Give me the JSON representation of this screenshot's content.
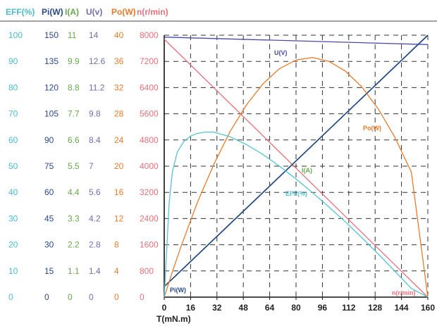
{
  "chart_data": {
    "type": "line",
    "xlabel": "T(mN.m)",
    "xlim": [
      0,
      160
    ],
    "x_ticks": [
      0,
      16,
      32,
      48,
      64,
      80,
      96,
      112,
      128,
      144,
      160
    ],
    "axes": [
      {
        "header": "EFF(%)",
        "color": "#4cbccc",
        "ticks": [
          "0",
          "10",
          "20",
          "30",
          "40",
          "50",
          "60",
          "70",
          "80",
          "90",
          "100"
        ],
        "range": [
          0,
          100
        ]
      },
      {
        "header": "Pi(W)",
        "color": "#2b4a8c",
        "ticks": [
          "0",
          "15",
          "30",
          "45",
          "60",
          "75",
          "90",
          "105",
          "120",
          "135",
          "150"
        ],
        "range": [
          0,
          150
        ]
      },
      {
        "header": "I(A)",
        "color": "#6aa84f",
        "ticks": [
          "0",
          "1.1",
          "2.2",
          "3.3",
          "4.4",
          "5.5",
          "6.6",
          "7.7",
          "8.8",
          "9.9",
          "11"
        ],
        "range": [
          0,
          11
        ]
      },
      {
        "header": "U(v)",
        "color": "#6f6fb0",
        "ticks": [
          "0",
          "1.4",
          "2.8",
          "4.2",
          "5.6",
          "7",
          "8.4",
          "9.8",
          "11.2",
          "12.6",
          "14"
        ],
        "range": [
          0,
          14
        ]
      },
      {
        "header": "Po(W)",
        "color": "#e87b2b",
        "ticks": [
          "0",
          "4",
          "8",
          "12",
          "16",
          "20",
          "24",
          "28",
          "32",
          "36",
          "40"
        ],
        "range": [
          0,
          40
        ]
      },
      {
        "header": "n(r/min)",
        "color": "#e8707a",
        "ticks": [
          "0",
          "800",
          "1600",
          "2400",
          "3200",
          "4000",
          "4800",
          "5600",
          "6400",
          "7200",
          "8000"
        ],
        "range": [
          0,
          8000
        ]
      }
    ],
    "series": [
      {
        "name": "U(V)",
        "axis": 3,
        "color": "#4a4aa8",
        "x": [
          0,
          160
        ],
        "y": [
          13.9,
          13.5
        ]
      },
      {
        "name": "n(r/min)",
        "axis": 5,
        "color": "#e8707a",
        "x": [
          0,
          160
        ],
        "y": [
          7880,
          0
        ]
      },
      {
        "name": "I(A)",
        "axis": 2,
        "color": "#2e6e76",
        "x": [
          0,
          160
        ],
        "y": [
          0.44,
          11
        ]
      },
      {
        "name": "Pi(W)",
        "axis": 1,
        "color": "#274a86",
        "x": [
          0,
          160
        ],
        "y": [
          6,
          150
        ]
      },
      {
        "name": "Po(W)",
        "axis": 4,
        "color": "#e87b2b",
        "x": [
          0,
          5,
          10,
          20,
          30,
          40,
          50,
          60,
          70,
          80,
          90,
          100,
          110,
          120,
          130,
          140,
          150,
          160
        ],
        "y": [
          0,
          3.9,
          7.6,
          14.4,
          20.2,
          25.3,
          29.4,
          32.6,
          34.9,
          36.2,
          36.6,
          36,
          34.5,
          32.1,
          28.7,
          24.4,
          19.1,
          0
        ]
      },
      {
        "name": "EFF(%)",
        "axis": 0,
        "color": "#56c3d1",
        "x": [
          0,
          1.5,
          3,
          5,
          8,
          12,
          16,
          20,
          25,
          30,
          40,
          50,
          60,
          70,
          80,
          90,
          100,
          110,
          120,
          130,
          140,
          150,
          160
        ],
        "y": [
          0,
          18,
          36,
          48,
          55.5,
          59.5,
          61.5,
          62.5,
          63,
          63,
          61.2,
          58.2,
          54.4,
          50,
          45.1,
          39.9,
          34.4,
          28.7,
          22.7,
          16.4,
          9.9,
          3.3,
          0
        ]
      }
    ],
    "labels": [
      {
        "text": "U(V)",
        "color": "#4a4aa8"
      },
      {
        "text": "Po(W)",
        "color": "#e87b2b"
      },
      {
        "text": "I(A)",
        "color": "#6aa84f"
      },
      {
        "text": "EFF(%)",
        "color": "#56c3d1"
      },
      {
        "text": "Pi(W)",
        "color": "#274a86"
      },
      {
        "text": "n(r/min)",
        "color": "#e8707a"
      }
    ],
    "grid": true
  }
}
